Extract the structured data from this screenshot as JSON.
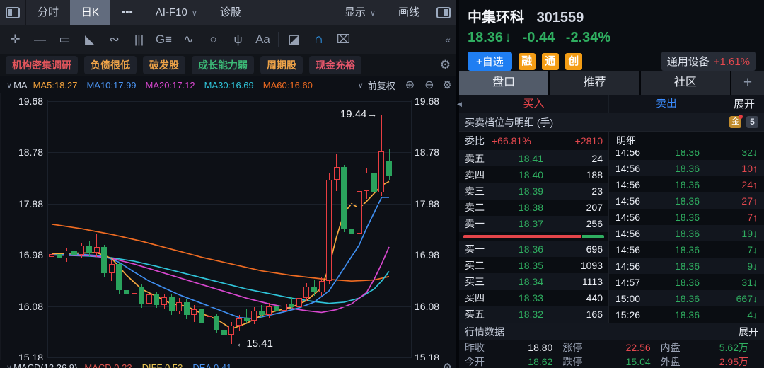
{
  "toolbar_top": {
    "minute": "分时",
    "daily_k": "日K",
    "more": "•••",
    "ai": "AI-F10",
    "diagnose": "诊股",
    "display": "显示",
    "draw_line": "画线",
    "chevron": "∨"
  },
  "draw_toolbar": {
    "icons": [
      {
        "name": "move-icon",
        "glyph": "✛"
      },
      {
        "name": "trend-line-icon",
        "glyph": "—"
      },
      {
        "name": "rectangle-icon",
        "glyph": "▭"
      },
      {
        "name": "fan-lines-icon",
        "glyph": "◣"
      },
      {
        "name": "segment-icon",
        "glyph": "∾"
      },
      {
        "name": "vertical-lines-icon",
        "glyph": "|||"
      },
      {
        "name": "gann-icon",
        "glyph": "G≡"
      },
      {
        "name": "wave-icon",
        "glyph": "∿"
      },
      {
        "name": "ellipse-icon",
        "glyph": "○"
      },
      {
        "name": "pitchfork-icon",
        "glyph": "ψ"
      },
      {
        "name": "text-icon",
        "glyph": "Aa"
      },
      {
        "name": "separator",
        "glyph": ""
      },
      {
        "name": "eraser-icon",
        "glyph": "◪"
      },
      {
        "name": "magnet-icon",
        "glyph": "∩",
        "active": true
      },
      {
        "name": "trash-icon",
        "glyph": "⌧"
      }
    ],
    "collapse": "«"
  },
  "tags": {
    "items": [
      {
        "label": "机构密集调研",
        "color": "#e4565c"
      },
      {
        "label": "负债很低",
        "color": "#eea348"
      },
      {
        "label": "破发股",
        "color": "#eea348"
      },
      {
        "label": "成长能力弱",
        "color": "#3cba77"
      },
      {
        "label": "周期股",
        "color": "#eea348"
      },
      {
        "label": "现金充裕",
        "color": "#e4566b"
      }
    ]
  },
  "indicator_bar": {
    "chevron": "∨",
    "group": "MA",
    "items": [
      {
        "label": "MA5:18.27",
        "color": "#f0a13c"
      },
      {
        "label": "MA10:17.99",
        "color": "#4a93f0"
      },
      {
        "label": "MA20:17.12",
        "color": "#d847cf"
      },
      {
        "label": "MA30:16.69",
        "color": "#2fc4d9"
      },
      {
        "label": "MA60:16.60",
        "color": "#ee6b22"
      }
    ],
    "adjust": "前复权",
    "zoom_in": "⊕",
    "zoom_out": "⊖",
    "gear": "⚙"
  },
  "macd_bar": {
    "chevron": "∨",
    "group": "MACD(12,26,9)",
    "items": [
      {
        "label": "MACD 0.23",
        "color": "#e25750"
      },
      {
        "label": "DIFF 0.53",
        "color": "#e8c452"
      },
      {
        "label": "DEA 0.41",
        "color": "#4a93f0"
      }
    ]
  },
  "chart_data": {
    "type": "candlestick",
    "title": "中集环科 301559 日K 前复权",
    "y_ticks": [
      "19.68",
      "18.78",
      "17.88",
      "16.98",
      "16.08",
      "15.18"
    ],
    "ylim": [
      15.18,
      19.68
    ],
    "grid": true,
    "up_color": "#e83e42",
    "down_color": "#2aa35d",
    "annotations": [
      {
        "text": "19.44→",
        "candle": 44,
        "price": 19.44,
        "side": "left"
      },
      {
        "text": "←15.41",
        "candle": 24,
        "price": 15.41,
        "side": "right"
      }
    ],
    "candles": [
      [
        16.95,
        17.04,
        16.85,
        17.0
      ],
      [
        17.0,
        17.06,
        16.88,
        16.92
      ],
      [
        16.92,
        17.1,
        16.86,
        17.06
      ],
      [
        17.06,
        17.15,
        16.95,
        16.98
      ],
      [
        16.98,
        17.19,
        16.93,
        17.15
      ],
      [
        17.15,
        17.22,
        16.96,
        17.02
      ],
      [
        17.02,
        17.35,
        16.94,
        17.12
      ],
      [
        17.12,
        17.16,
        16.58,
        16.66
      ],
      [
        16.66,
        16.88,
        16.52,
        16.82
      ],
      [
        16.82,
        16.86,
        16.28,
        16.36
      ],
      [
        16.36,
        16.55,
        16.2,
        16.3
      ],
      [
        16.3,
        16.48,
        16.16,
        16.42
      ],
      [
        16.42,
        16.46,
        16.05,
        16.12
      ],
      [
        16.12,
        16.35,
        16.02,
        16.28
      ],
      [
        16.28,
        16.33,
        16.05,
        16.1
      ],
      [
        16.1,
        16.3,
        16.02,
        16.24
      ],
      [
        16.24,
        16.28,
        15.92,
        15.99
      ],
      [
        15.99,
        16.22,
        15.94,
        16.15
      ],
      [
        16.15,
        16.2,
        15.85,
        15.92
      ],
      [
        15.92,
        16.1,
        15.8,
        16.03
      ],
      [
        16.03,
        16.08,
        15.7,
        15.78
      ],
      [
        15.78,
        15.98,
        15.66,
        15.9
      ],
      [
        15.9,
        15.95,
        15.6,
        15.66
      ],
      [
        15.66,
        15.85,
        15.52,
        15.58
      ],
      [
        15.58,
        15.8,
        15.41,
        15.74
      ],
      [
        15.74,
        15.92,
        15.64,
        15.86
      ],
      [
        15.86,
        16.02,
        15.78,
        15.82
      ],
      [
        15.82,
        16.06,
        15.76,
        16.0
      ],
      [
        16.0,
        16.1,
        15.86,
        15.92
      ],
      [
        15.92,
        16.14,
        15.88,
        16.08
      ],
      [
        16.08,
        16.16,
        15.94,
        16.0
      ],
      [
        16.0,
        16.18,
        15.92,
        16.12
      ],
      [
        16.12,
        16.24,
        16.02,
        16.06
      ],
      [
        16.06,
        16.28,
        16.0,
        16.22
      ],
      [
        16.22,
        16.48,
        16.16,
        16.42
      ],
      [
        16.42,
        16.54,
        16.26,
        16.32
      ],
      [
        16.32,
        16.58,
        16.26,
        16.52
      ],
      [
        16.52,
        18.42,
        16.46,
        18.3
      ],
      [
        18.3,
        18.76,
        18.1,
        18.52
      ],
      [
        18.52,
        18.56,
        17.38,
        17.44
      ],
      [
        17.44,
        17.66,
        17.28,
        17.36
      ],
      [
        17.36,
        18.22,
        17.3,
        18.1
      ],
      [
        18.1,
        18.5,
        17.96,
        18.42
      ],
      [
        18.42,
        18.46,
        18.0,
        18.08
      ],
      [
        18.08,
        19.44,
        18.02,
        18.8
      ],
      [
        18.62,
        18.84,
        18.3,
        18.36
      ]
    ],
    "ma_lines": [
      {
        "name": "MA60",
        "color": "#ee6b22",
        "points": [
          [
            0,
            17.52
          ],
          [
            4,
            17.44
          ],
          [
            8,
            17.34
          ],
          [
            12,
            17.22
          ],
          [
            16,
            17.08
          ],
          [
            20,
            16.94
          ],
          [
            24,
            16.82
          ],
          [
            28,
            16.7
          ],
          [
            32,
            16.62
          ],
          [
            36,
            16.56
          ],
          [
            40,
            16.52
          ],
          [
            43,
            16.54
          ],
          [
            45,
            16.6
          ]
        ]
      },
      {
        "name": "MA30",
        "color": "#2fc4d9",
        "points": [
          [
            0,
            16.98
          ],
          [
            5,
            16.96
          ],
          [
            8,
            16.93
          ],
          [
            11,
            16.87
          ],
          [
            14,
            16.78
          ],
          [
            17,
            16.68
          ],
          [
            20,
            16.58
          ],
          [
            23,
            16.48
          ],
          [
            26,
            16.38
          ],
          [
            29,
            16.3
          ],
          [
            32,
            16.22
          ],
          [
            35,
            16.16
          ],
          [
            37,
            16.13
          ],
          [
            39,
            16.15
          ],
          [
            41,
            16.22
          ],
          [
            43,
            16.38
          ],
          [
            44,
            16.52
          ],
          [
            45,
            16.69
          ]
        ]
      },
      {
        "name": "MA20",
        "color": "#d847cf",
        "points": [
          [
            0,
            16.98
          ],
          [
            5,
            16.97
          ],
          [
            8,
            16.92
          ],
          [
            11,
            16.82
          ],
          [
            14,
            16.7
          ],
          [
            17,
            16.58
          ],
          [
            20,
            16.46
          ],
          [
            23,
            16.34
          ],
          [
            26,
            16.22
          ],
          [
            29,
            16.12
          ],
          [
            32,
            16.04
          ],
          [
            34,
            16.0
          ],
          [
            36,
            15.97
          ],
          [
            38,
            16.02
          ],
          [
            40,
            16.12
          ],
          [
            42,
            16.32
          ],
          [
            43,
            16.55
          ],
          [
            44,
            16.82
          ],
          [
            45,
            17.12
          ]
        ]
      },
      {
        "name": "MA10",
        "color": "#3f8ef0",
        "points": [
          [
            0,
            16.98
          ],
          [
            4,
            16.99
          ],
          [
            7,
            16.96
          ],
          [
            9,
            16.85
          ],
          [
            11,
            16.68
          ],
          [
            13,
            16.52
          ],
          [
            15,
            16.4
          ],
          [
            17,
            16.28
          ],
          [
            19,
            16.18
          ],
          [
            21,
            16.08
          ],
          [
            23,
            15.98
          ],
          [
            25,
            15.88
          ],
          [
            27,
            15.86
          ],
          [
            29,
            15.92
          ],
          [
            31,
            15.98
          ],
          [
            33,
            16.05
          ],
          [
            35,
            16.15
          ],
          [
            37,
            16.35
          ],
          [
            39,
            16.75
          ],
          [
            41,
            17.15
          ],
          [
            42,
            17.45
          ],
          [
            43,
            17.72
          ],
          [
            44,
            17.99
          ],
          [
            45,
            17.99
          ]
        ]
      },
      {
        "name": "MA5",
        "color": "#f6a940",
        "points": [
          [
            0,
            17.0
          ],
          [
            3,
            17.01
          ],
          [
            6,
            17.02
          ],
          [
            8,
            16.92
          ],
          [
            10,
            16.62
          ],
          [
            12,
            16.38
          ],
          [
            14,
            16.25
          ],
          [
            16,
            16.12
          ],
          [
            18,
            16.08
          ],
          [
            20,
            15.95
          ],
          [
            22,
            15.85
          ],
          [
            24,
            15.68
          ],
          [
            26,
            15.78
          ],
          [
            28,
            15.92
          ],
          [
            30,
            16.0
          ],
          [
            32,
            16.06
          ],
          [
            34,
            16.18
          ],
          [
            36,
            16.4
          ],
          [
            37,
            16.78
          ],
          [
            38,
            17.3
          ],
          [
            39,
            17.72
          ],
          [
            40,
            17.88
          ],
          [
            41,
            17.8
          ],
          [
            42,
            17.92
          ],
          [
            43,
            18.06
          ],
          [
            44,
            18.2
          ],
          [
            45,
            18.27
          ]
        ]
      }
    ]
  },
  "stock": {
    "name": "中集环科",
    "code": "301559",
    "price": "18.36",
    "arrow": "↓",
    "change": "-0.44",
    "change_pct": "-2.34%",
    "add_watch": "+自选",
    "badges": [
      "融",
      "通",
      "创"
    ],
    "industry": "通用设备",
    "industry_pct": "+1.61%"
  },
  "tabs": {
    "items": [
      "盘口",
      "推荐",
      "社区"
    ],
    "active": 0,
    "plus": "+"
  },
  "trade_bar": {
    "buy": "买入",
    "sell": "卖出",
    "expand": "展开"
  },
  "order_book": {
    "title": "买卖档位与明细 (手)",
    "badge_gold": "金",
    "badge_five": "5",
    "weibi_label": "委比",
    "weibi_value": "+66.81%",
    "weicha_value": "+2810",
    "detail_header": "明细",
    "sell_levels": [
      {
        "label": "卖五",
        "price": "18.41",
        "vol": "24"
      },
      {
        "label": "卖四",
        "price": "18.40",
        "vol": "188"
      },
      {
        "label": "卖三",
        "price": "18.39",
        "vol": "23"
      },
      {
        "label": "卖二",
        "price": "18.38",
        "vol": "207"
      },
      {
        "label": "卖一",
        "price": "18.37",
        "vol": "256"
      }
    ],
    "buy_levels": [
      {
        "label": "买一",
        "price": "18.36",
        "vol": "696"
      },
      {
        "label": "买二",
        "price": "18.35",
        "vol": "1093"
      },
      {
        "label": "买三",
        "price": "18.34",
        "vol": "1113"
      },
      {
        "label": "买四",
        "price": "18.33",
        "vol": "440"
      },
      {
        "label": "买五",
        "price": "18.32",
        "vol": "166"
      }
    ],
    "ratio_bar": {
      "red_pct": 83.4,
      "green_pct": 16.6
    },
    "details": [
      {
        "time": "14:56",
        "price": "18.36",
        "vol": "32",
        "dir": "down"
      },
      {
        "time": "14:56",
        "price": "18.36",
        "vol": "10",
        "dir": "up"
      },
      {
        "time": "14:56",
        "price": "18.36",
        "vol": "24",
        "dir": "up"
      },
      {
        "time": "14:56",
        "price": "18.36",
        "vol": "27",
        "dir": "up"
      },
      {
        "time": "14:56",
        "price": "18.36",
        "vol": "7",
        "dir": "up"
      },
      {
        "time": "14:56",
        "price": "18.36",
        "vol": "19",
        "dir": "down"
      },
      {
        "time": "14:56",
        "price": "18.36",
        "vol": "7",
        "dir": "down"
      },
      {
        "time": "14:56",
        "price": "18.36",
        "vol": "9",
        "dir": "down"
      },
      {
        "time": "14:57",
        "price": "18.36",
        "vol": "31",
        "dir": "down"
      },
      {
        "time": "15:00",
        "price": "18.36",
        "vol": "667",
        "dir": "down"
      },
      {
        "time": "15:26",
        "price": "18.36",
        "vol": "4",
        "dir": "down"
      }
    ]
  },
  "market_data": {
    "title": "行情数据",
    "expand": "展开",
    "rows": [
      [
        {
          "label": "昨收",
          "value": "18.80",
          "color": "white"
        },
        {
          "label": "涨停",
          "value": "22.56",
          "color": "red"
        },
        {
          "label": "内盘",
          "value": "5.62万",
          "color": "green"
        }
      ],
      [
        {
          "label": "今开",
          "value": "18.62",
          "color": "green"
        },
        {
          "label": "跌停",
          "value": "15.04",
          "color": "green"
        },
        {
          "label": "外盘",
          "value": "2.95万",
          "color": "red"
        }
      ]
    ]
  }
}
